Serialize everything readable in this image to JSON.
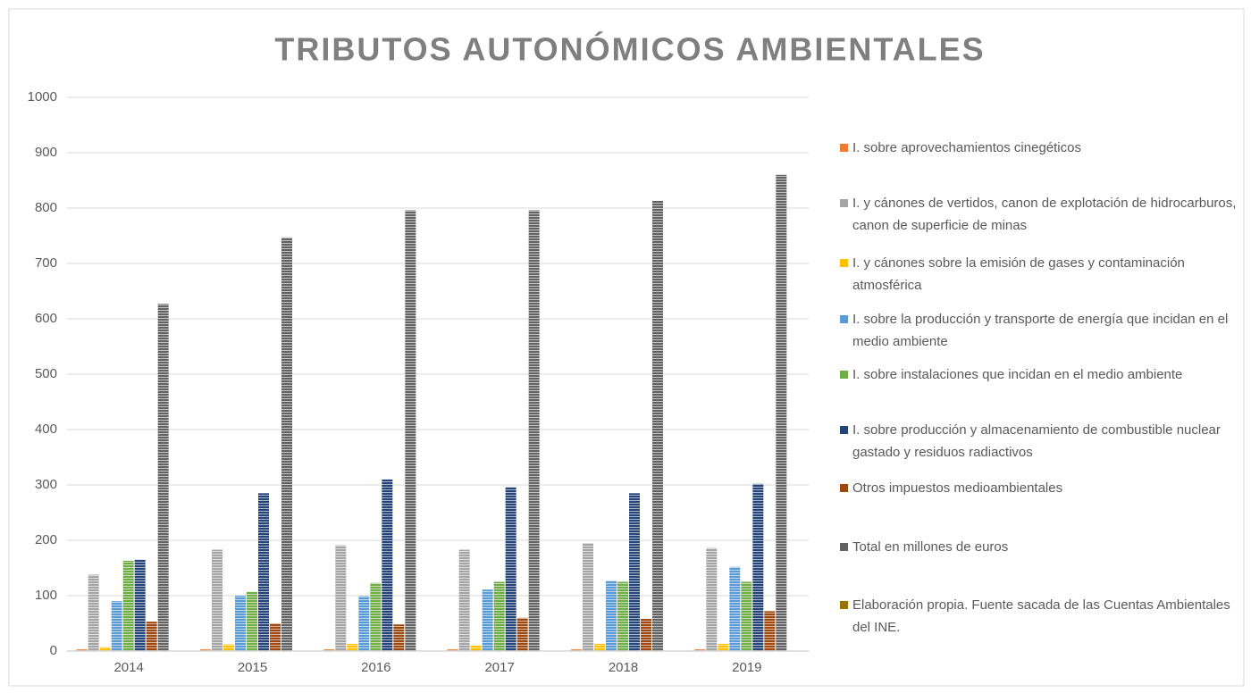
{
  "chart_data": {
    "type": "bar",
    "title": "TRIBUTOS AUTONÓMICOS AMBIENTALES",
    "categories": [
      "2014",
      "2015",
      "2016",
      "2017",
      "2018",
      "2019"
    ],
    "series": [
      {
        "name": "I. sobre aprovechamientos cinegéticos",
        "color": "#ed7d31",
        "values": [
          3,
          3,
          3,
          3,
          3,
          3
        ]
      },
      {
        "name": "I. y cánones de vertidos, canon de explotación de hidrocarburos, canon de superficie de minas",
        "color": "#a5a5a5",
        "values": [
          138,
          183,
          191,
          183,
          195,
          186
        ]
      },
      {
        "name": "I. y cánones sobre la emisión de gases y contaminación atmosférica",
        "color": "#ffc000",
        "values": [
          7,
          12,
          13,
          10,
          13,
          13
        ]
      },
      {
        "name": "I. sobre la producción y transporte de energía que incidan en el medio ambiente",
        "color": "#5b9bd5",
        "values": [
          90,
          100,
          99,
          111,
          127,
          152
        ]
      },
      {
        "name": "I. sobre instalaciones que incidan en el medio ambiente",
        "color": "#70ad47",
        "values": [
          163,
          107,
          123,
          125,
          125,
          125
        ]
      },
      {
        "name": "I. sobre producción y almacenamiento de combustible nuclear gastado y residuos radiactivos",
        "color": "#264478",
        "values": [
          165,
          285,
          310,
          296,
          285,
          302
        ]
      },
      {
        "name": "Otros impuestos medioambientales",
        "color": "#9e480e",
        "values": [
          53,
          50,
          48,
          60,
          58,
          72
        ]
      },
      {
        "name": "Total en millones de euros",
        "color": "#636363",
        "values": [
          627,
          747,
          796,
          796,
          813,
          860
        ]
      },
      {
        "name": "Elaboración propia. Fuente sacada de las Cuentas Ambientales del INE.",
        "color": "#997300",
        "values": [
          null,
          null,
          null,
          null,
          null,
          null
        ]
      }
    ],
    "ylim": [
      0,
      1000
    ],
    "yticks": [
      0,
      100,
      200,
      300,
      400,
      500,
      600,
      700,
      800,
      900,
      1000
    ],
    "grid": true,
    "legend": "right"
  }
}
